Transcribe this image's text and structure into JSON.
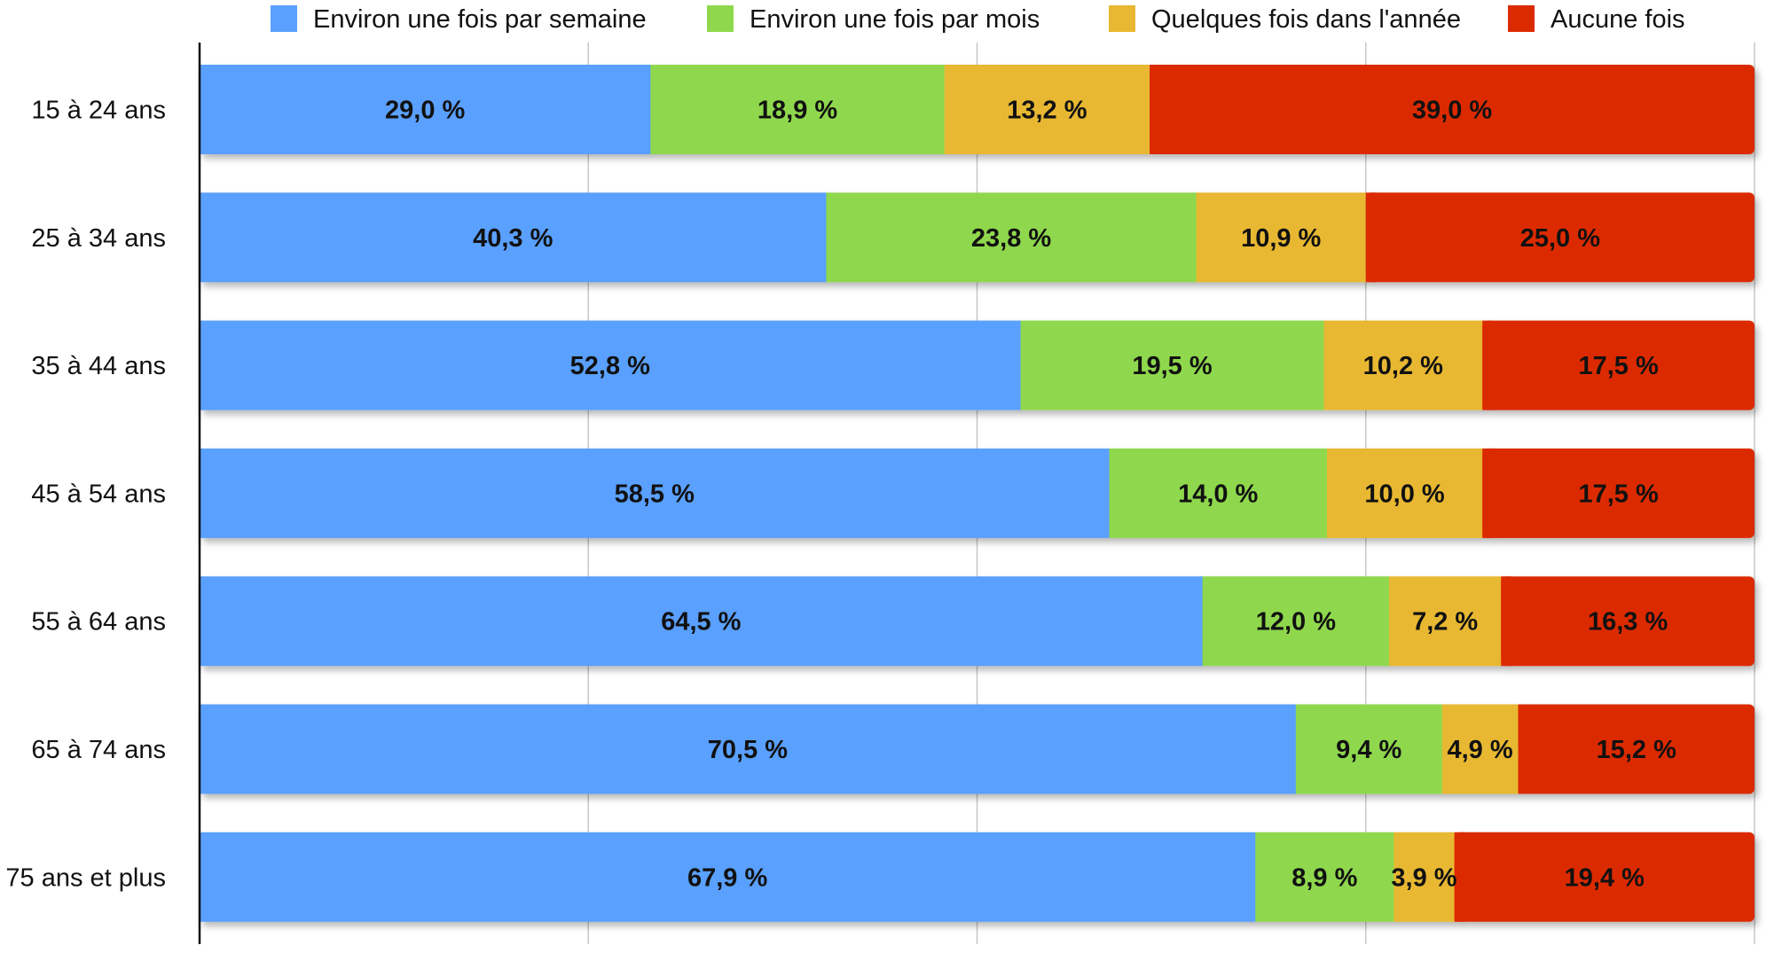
{
  "chart_data": {
    "type": "bar",
    "orientation": "horizontal",
    "stacked": true,
    "categories": [
      "15 à 24 ans",
      "25 à 34 ans",
      "35 à 44 ans",
      "45 à 54 ans",
      "55 à 64 ans",
      "65 à 74 ans",
      "75 ans et plus"
    ],
    "series": [
      {
        "name": "Environ une fois par semaine",
        "color": "#5aa0fe",
        "values": [
          29.0,
          40.3,
          52.8,
          58.5,
          64.5,
          70.5,
          67.9
        ],
        "labels": [
          "29,0 %",
          "40,3 %",
          "52,8 %",
          "58,5 %",
          "64,5 %",
          "70,5 %",
          "67,9 %"
        ]
      },
      {
        "name": "Environ une fois par mois",
        "color": "#8fd84e",
        "values": [
          18.9,
          23.8,
          19.5,
          14.0,
          12.0,
          9.4,
          8.9
        ],
        "labels": [
          "18,9 %",
          "23,8 %",
          "19,5 %",
          "14,0 %",
          "12,0 %",
          "9,4 %",
          "8,9 %"
        ]
      },
      {
        "name": "Quelques fois dans l'année",
        "color": "#e8b832",
        "values": [
          13.2,
          10.9,
          10.2,
          10.0,
          7.2,
          4.9,
          3.9
        ],
        "labels": [
          "13,2 %",
          "10,9 %",
          "10,2 %",
          "10,0 %",
          "7,2 %",
          "4,9 %",
          "3,9 %"
        ]
      },
      {
        "name": "Aucune fois",
        "color": "#dc2a00",
        "values": [
          39.0,
          25.0,
          17.5,
          17.5,
          16.3,
          15.2,
          19.4
        ],
        "labels": [
          "39,0 %",
          "25,0 %",
          "17,5 %",
          "17,5 %",
          "16,3 %",
          "15,2 %",
          "19,4 %"
        ]
      }
    ],
    "xlim": [
      0,
      100
    ],
    "grid": true,
    "legend_position": "top"
  }
}
